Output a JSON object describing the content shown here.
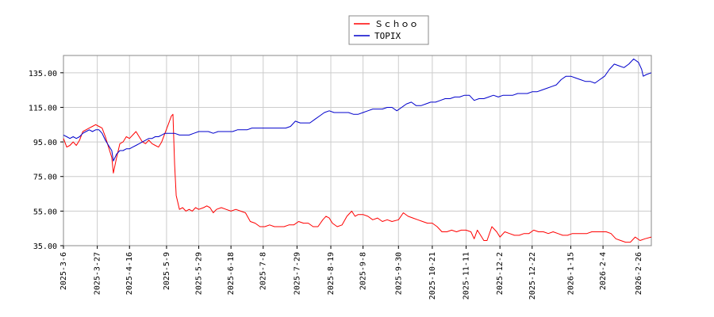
{
  "chart_data": {
    "type": "line",
    "title": "",
    "xlabel": "",
    "ylabel": "",
    "ylim": [
      35,
      145
    ],
    "y_ticks": [
      35,
      55,
      75,
      95,
      115,
      135
    ],
    "y_tick_labels": [
      "35.00",
      "55.00",
      "75.00",
      "95.00",
      "115.00",
      "135.00"
    ],
    "x_range": [
      "2025-03-06",
      "2026-03-06"
    ],
    "x_ticks": [
      "2025-03-06",
      "2025-03-27",
      "2025-04-16",
      "2025-05-09",
      "2025-05-29",
      "2025-06-18",
      "2025-07-08",
      "2025-07-29",
      "2025-08-19",
      "2025-09-08",
      "2025-09-30",
      "2025-10-21",
      "2025-11-11",
      "2025-12-02",
      "2025-12-22",
      "2026-01-15",
      "2026-02-04",
      "2026-02-26"
    ],
    "x_tick_labels": [
      "2025-3-6",
      "2025-3-27",
      "2025-4-16",
      "2025-5-9",
      "2025-5-29",
      "2025-6-18",
      "2025-7-8",
      "2025-7-29",
      "2025-8-19",
      "2025-9-8",
      "2025-9-30",
      "2025-10-21",
      "2025-11-11",
      "2025-12-2",
      "2025-12-22",
      "2026-1-15",
      "2026-2-4",
      "2026-2-26"
    ],
    "grid": true,
    "legend_position": "top-center",
    "series": [
      {
        "name": "Ｓｃｈｏｏ",
        "color": "#ff0000",
        "points": [
          [
            "2025-03-06",
            97
          ],
          [
            "2025-03-08",
            92
          ],
          [
            "2025-03-10",
            93
          ],
          [
            "2025-03-12",
            95
          ],
          [
            "2025-03-14",
            93
          ],
          [
            "2025-03-16",
            96
          ],
          [
            "2025-03-18",
            101
          ],
          [
            "2025-03-20",
            102
          ],
          [
            "2025-03-22",
            103
          ],
          [
            "2025-03-24",
            104
          ],
          [
            "2025-03-26",
            105
          ],
          [
            "2025-03-28",
            104
          ],
          [
            "2025-03-30",
            103
          ],
          [
            "2025-04-01",
            98
          ],
          [
            "2025-04-03",
            92
          ],
          [
            "2025-04-05",
            86
          ],
          [
            "2025-04-06",
            77
          ],
          [
            "2025-04-08",
            86
          ],
          [
            "2025-04-10",
            94
          ],
          [
            "2025-04-12",
            95
          ],
          [
            "2025-04-14",
            98
          ],
          [
            "2025-04-16",
            97
          ],
          [
            "2025-04-18",
            99
          ],
          [
            "2025-04-20",
            101
          ],
          [
            "2025-04-22",
            98
          ],
          [
            "2025-04-24",
            95
          ],
          [
            "2025-04-26",
            94
          ],
          [
            "2025-04-28",
            96
          ],
          [
            "2025-04-30",
            94
          ],
          [
            "2025-05-02",
            93
          ],
          [
            "2025-05-04",
            92
          ],
          [
            "2025-05-06",
            95
          ],
          [
            "2025-05-08",
            100
          ],
          [
            "2025-05-10",
            105
          ],
          [
            "2025-05-12",
            110
          ],
          [
            "2025-05-13",
            111
          ],
          [
            "2025-05-14",
            82
          ],
          [
            "2025-05-15",
            64
          ],
          [
            "2025-05-17",
            56
          ],
          [
            "2025-05-19",
            57
          ],
          [
            "2025-05-21",
            55
          ],
          [
            "2025-05-23",
            56
          ],
          [
            "2025-05-25",
            55
          ],
          [
            "2025-05-27",
            57
          ],
          [
            "2025-05-29",
            56
          ],
          [
            "2025-06-01",
            57
          ],
          [
            "2025-06-03",
            58
          ],
          [
            "2025-06-05",
            57
          ],
          [
            "2025-06-07",
            54
          ],
          [
            "2025-06-09",
            56
          ],
          [
            "2025-06-12",
            57
          ],
          [
            "2025-06-15",
            56
          ],
          [
            "2025-06-18",
            55
          ],
          [
            "2025-06-21",
            56
          ],
          [
            "2025-06-24",
            55
          ],
          [
            "2025-06-27",
            54
          ],
          [
            "2025-06-30",
            49
          ],
          [
            "2025-07-03",
            48
          ],
          [
            "2025-07-06",
            46
          ],
          [
            "2025-07-09",
            46
          ],
          [
            "2025-07-12",
            47
          ],
          [
            "2025-07-15",
            46
          ],
          [
            "2025-07-18",
            46
          ],
          [
            "2025-07-21",
            46
          ],
          [
            "2025-07-24",
            47
          ],
          [
            "2025-07-27",
            47
          ],
          [
            "2025-07-30",
            49
          ],
          [
            "2025-08-02",
            48
          ],
          [
            "2025-08-05",
            48
          ],
          [
            "2025-08-08",
            46
          ],
          [
            "2025-08-11",
            46
          ],
          [
            "2025-08-14",
            50
          ],
          [
            "2025-08-16",
            52
          ],
          [
            "2025-08-18",
            51
          ],
          [
            "2025-08-20",
            48
          ],
          [
            "2025-08-23",
            46
          ],
          [
            "2025-08-26",
            47
          ],
          [
            "2025-08-29",
            52
          ],
          [
            "2025-09-01",
            55
          ],
          [
            "2025-09-03",
            52
          ],
          [
            "2025-09-05",
            53
          ],
          [
            "2025-09-08",
            53
          ],
          [
            "2025-09-11",
            52
          ],
          [
            "2025-09-14",
            50
          ],
          [
            "2025-09-17",
            51
          ],
          [
            "2025-09-20",
            49
          ],
          [
            "2025-09-23",
            50
          ],
          [
            "2025-09-26",
            49
          ],
          [
            "2025-09-30",
            50
          ],
          [
            "2025-10-03",
            54
          ],
          [
            "2025-10-06",
            52
          ],
          [
            "2025-10-09",
            51
          ],
          [
            "2025-10-12",
            50
          ],
          [
            "2025-10-15",
            49
          ],
          [
            "2025-10-18",
            48
          ],
          [
            "2025-10-21",
            48
          ],
          [
            "2025-10-24",
            46
          ],
          [
            "2025-10-27",
            43
          ],
          [
            "2025-10-30",
            43
          ],
          [
            "2025-11-02",
            44
          ],
          [
            "2025-11-05",
            43
          ],
          [
            "2025-11-08",
            44
          ],
          [
            "2025-11-11",
            44
          ],
          [
            "2025-11-14",
            43
          ],
          [
            "2025-11-16",
            39
          ],
          [
            "2025-11-18",
            44
          ],
          [
            "2025-11-20",
            41
          ],
          [
            "2025-11-22",
            38
          ],
          [
            "2025-11-24",
            38
          ],
          [
            "2025-11-27",
            46
          ],
          [
            "2025-11-30",
            43
          ],
          [
            "2025-12-02",
            40
          ],
          [
            "2025-12-05",
            43
          ],
          [
            "2025-12-08",
            42
          ],
          [
            "2025-12-11",
            41
          ],
          [
            "2025-12-14",
            41
          ],
          [
            "2025-12-17",
            42
          ],
          [
            "2025-12-20",
            42
          ],
          [
            "2025-12-23",
            44
          ],
          [
            "2025-12-26",
            43
          ],
          [
            "2025-12-29",
            43
          ],
          [
            "2026-01-01",
            42
          ],
          [
            "2026-01-04",
            43
          ],
          [
            "2026-01-07",
            42
          ],
          [
            "2026-01-10",
            41
          ],
          [
            "2026-01-13",
            41
          ],
          [
            "2026-01-16",
            42
          ],
          [
            "2026-01-19",
            42
          ],
          [
            "2026-01-22",
            42
          ],
          [
            "2026-01-25",
            42
          ],
          [
            "2026-01-28",
            43
          ],
          [
            "2026-01-31",
            43
          ],
          [
            "2026-02-03",
            43
          ],
          [
            "2026-02-06",
            43
          ],
          [
            "2026-02-09",
            42
          ],
          [
            "2026-02-12",
            39
          ],
          [
            "2026-02-15",
            38
          ],
          [
            "2026-02-18",
            37
          ],
          [
            "2026-02-21",
            37
          ],
          [
            "2026-02-24",
            40
          ],
          [
            "2026-02-27",
            38
          ],
          [
            "2026-03-02",
            39
          ],
          [
            "2026-03-06",
            40
          ]
        ]
      },
      {
        "name": "TOPIX",
        "color": "#0000cc",
        "points": [
          [
            "2025-03-06",
            99
          ],
          [
            "2025-03-08",
            98
          ],
          [
            "2025-03-10",
            97
          ],
          [
            "2025-03-12",
            98
          ],
          [
            "2025-03-14",
            97
          ],
          [
            "2025-03-16",
            98
          ],
          [
            "2025-03-18",
            100
          ],
          [
            "2025-03-20",
            101
          ],
          [
            "2025-03-22",
            102
          ],
          [
            "2025-03-24",
            101
          ],
          [
            "2025-03-26",
            102
          ],
          [
            "2025-03-28",
            102
          ],
          [
            "2025-03-30",
            100
          ],
          [
            "2025-04-01",
            96
          ],
          [
            "2025-04-03",
            93
          ],
          [
            "2025-04-05",
            90
          ],
          [
            "2025-04-06",
            84
          ],
          [
            "2025-04-08",
            88
          ],
          [
            "2025-04-10",
            90
          ],
          [
            "2025-04-12",
            90
          ],
          [
            "2025-04-14",
            91
          ],
          [
            "2025-04-16",
            91
          ],
          [
            "2025-04-18",
            92
          ],
          [
            "2025-04-20",
            93
          ],
          [
            "2025-04-22",
            94
          ],
          [
            "2025-04-24",
            95
          ],
          [
            "2025-04-26",
            96
          ],
          [
            "2025-04-28",
            97
          ],
          [
            "2025-04-30",
            97
          ],
          [
            "2025-05-02",
            98
          ],
          [
            "2025-05-04",
            98
          ],
          [
            "2025-05-06",
            99
          ],
          [
            "2025-05-08",
            100
          ],
          [
            "2025-05-10",
            100
          ],
          [
            "2025-05-12",
            100
          ],
          [
            "2025-05-14",
            100
          ],
          [
            "2025-05-17",
            99
          ],
          [
            "2025-05-20",
            99
          ],
          [
            "2025-05-23",
            99
          ],
          [
            "2025-05-26",
            100
          ],
          [
            "2025-05-29",
            101
          ],
          [
            "2025-06-01",
            101
          ],
          [
            "2025-06-04",
            101
          ],
          [
            "2025-06-07",
            100
          ],
          [
            "2025-06-10",
            101
          ],
          [
            "2025-06-13",
            101
          ],
          [
            "2025-06-16",
            101
          ],
          [
            "2025-06-19",
            101
          ],
          [
            "2025-06-22",
            102
          ],
          [
            "2025-06-25",
            102
          ],
          [
            "2025-06-28",
            102
          ],
          [
            "2025-07-01",
            103
          ],
          [
            "2025-07-04",
            103
          ],
          [
            "2025-07-07",
            103
          ],
          [
            "2025-07-10",
            103
          ],
          [
            "2025-07-13",
            103
          ],
          [
            "2025-07-16",
            103
          ],
          [
            "2025-07-19",
            103
          ],
          [
            "2025-07-22",
            103
          ],
          [
            "2025-07-25",
            104
          ],
          [
            "2025-07-28",
            107
          ],
          [
            "2025-07-31",
            106
          ],
          [
            "2025-08-03",
            106
          ],
          [
            "2025-08-06",
            106
          ],
          [
            "2025-08-09",
            108
          ],
          [
            "2025-08-12",
            110
          ],
          [
            "2025-08-15",
            112
          ],
          [
            "2025-08-18",
            113
          ],
          [
            "2025-08-21",
            112
          ],
          [
            "2025-08-24",
            112
          ],
          [
            "2025-08-27",
            112
          ],
          [
            "2025-08-30",
            112
          ],
          [
            "2025-09-02",
            111
          ],
          [
            "2025-09-05",
            111
          ],
          [
            "2025-09-08",
            112
          ],
          [
            "2025-09-11",
            113
          ],
          [
            "2025-09-14",
            114
          ],
          [
            "2025-09-17",
            114
          ],
          [
            "2025-09-20",
            114
          ],
          [
            "2025-09-23",
            115
          ],
          [
            "2025-09-26",
            115
          ],
          [
            "2025-09-29",
            113
          ],
          [
            "2025-10-02",
            115
          ],
          [
            "2025-10-05",
            117
          ],
          [
            "2025-10-08",
            118
          ],
          [
            "2025-10-11",
            116
          ],
          [
            "2025-10-14",
            116
          ],
          [
            "2025-10-17",
            117
          ],
          [
            "2025-10-20",
            118
          ],
          [
            "2025-10-23",
            118
          ],
          [
            "2025-10-26",
            119
          ],
          [
            "2025-10-29",
            120
          ],
          [
            "2025-11-01",
            120
          ],
          [
            "2025-11-04",
            121
          ],
          [
            "2025-11-07",
            121
          ],
          [
            "2025-11-10",
            122
          ],
          [
            "2025-11-13",
            122
          ],
          [
            "2025-11-16",
            119
          ],
          [
            "2025-11-19",
            120
          ],
          [
            "2025-11-22",
            120
          ],
          [
            "2025-11-25",
            121
          ],
          [
            "2025-11-28",
            122
          ],
          [
            "2025-12-01",
            121
          ],
          [
            "2025-12-04",
            122
          ],
          [
            "2025-12-07",
            122
          ],
          [
            "2025-12-10",
            122
          ],
          [
            "2025-12-13",
            123
          ],
          [
            "2025-12-16",
            123
          ],
          [
            "2025-12-19",
            123
          ],
          [
            "2025-12-22",
            124
          ],
          [
            "2025-12-25",
            124
          ],
          [
            "2025-12-28",
            125
          ],
          [
            "2025-12-31",
            126
          ],
          [
            "2026-01-03",
            127
          ],
          [
            "2026-01-06",
            128
          ],
          [
            "2026-01-09",
            131
          ],
          [
            "2026-01-12",
            133
          ],
          [
            "2026-01-15",
            133
          ],
          [
            "2026-01-18",
            132
          ],
          [
            "2026-01-21",
            131
          ],
          [
            "2026-01-24",
            130
          ],
          [
            "2026-01-27",
            130
          ],
          [
            "2026-01-30",
            129
          ],
          [
            "2026-02-02",
            131
          ],
          [
            "2026-02-05",
            133
          ],
          [
            "2026-02-08",
            137
          ],
          [
            "2026-02-11",
            140
          ],
          [
            "2026-02-14",
            139
          ],
          [
            "2026-02-17",
            138
          ],
          [
            "2026-02-20",
            140
          ],
          [
            "2026-02-23",
            143
          ],
          [
            "2026-02-26",
            141
          ],
          [
            "2026-02-28",
            137
          ],
          [
            "2026-03-01",
            133
          ],
          [
            "2026-03-03",
            134
          ],
          [
            "2026-03-06",
            135
          ]
        ]
      }
    ]
  }
}
